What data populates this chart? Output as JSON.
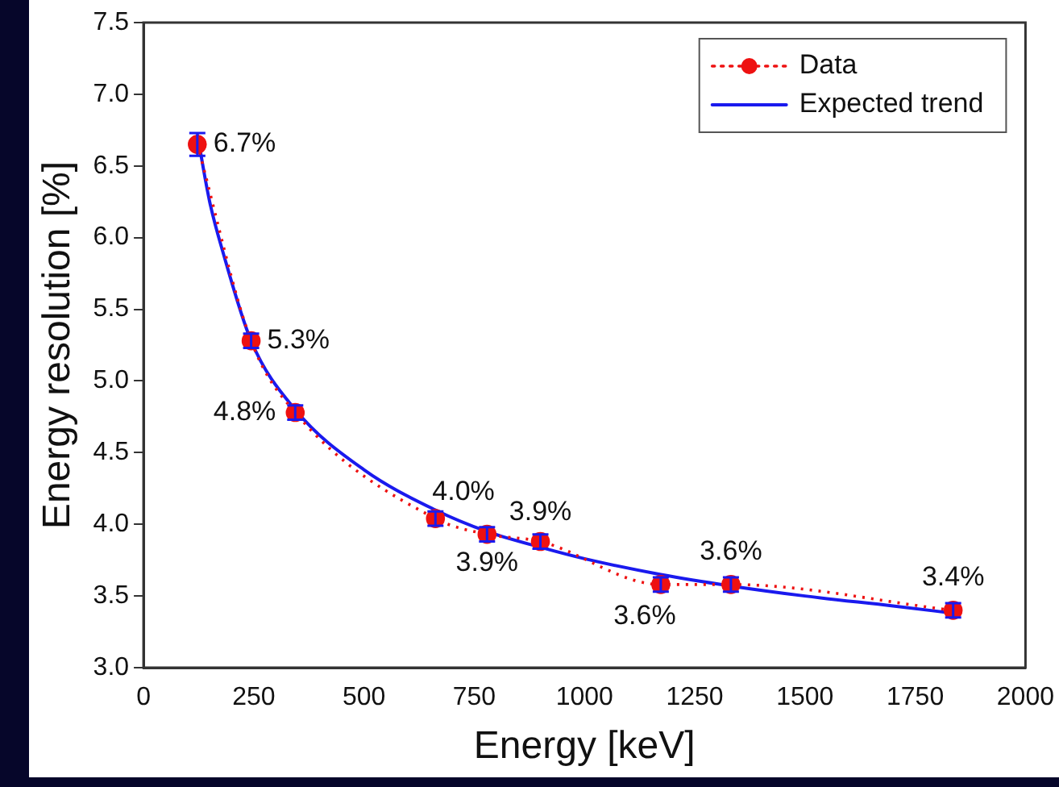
{
  "chart_data": {
    "type": "line",
    "xlabel": "Energy [keV]",
    "ylabel": "Energy resolution [%]",
    "xlim": [
      0,
      2000
    ],
    "xticks": [
      0,
      250,
      500,
      750,
      1000,
      1250,
      1500,
      1750,
      2000
    ],
    "ylim": [
      3.0,
      7.5
    ],
    "yticks": [
      {
        "value": 3.0,
        "label": "3.0"
      },
      {
        "value": 3.5,
        "label": "3.5"
      },
      {
        "value": 4.0,
        "label": "4.0"
      },
      {
        "value": 4.5,
        "label": "4.5"
      },
      {
        "value": 5.0,
        "label": "5.0"
      },
      {
        "value": 5.5,
        "label": "5.5"
      },
      {
        "value": 6.0,
        "label": "6.0"
      },
      {
        "value": 6.5,
        "label": "6.5"
      },
      {
        "value": 7.0,
        "label": "7.0"
      },
      {
        "value": 7.5,
        "label": "7.5"
      }
    ],
    "legend": "top right",
    "series": [
      {
        "name": "Data",
        "color": "#ee1111",
        "marker": "circle",
        "line_style": "dotted",
        "x": [
          122,
          244,
          344,
          662,
          779,
          900,
          1173,
          1332,
          1836
        ],
        "values": [
          6.65,
          5.28,
          4.78,
          4.04,
          3.93,
          3.88,
          3.58,
          3.58,
          3.4
        ],
        "errors": [
          0.08,
          0.05,
          0.05,
          0.05,
          0.05,
          0.05,
          0.05,
          0.05,
          0.05
        ],
        "value_labels": [
          "6.7%",
          "5.3%",
          "4.8%",
          "4.0%",
          "3.9%",
          "3.9%",
          "3.6%",
          "3.6%",
          "3.4%"
        ]
      },
      {
        "name": "Expected trend",
        "type": "line",
        "color": "#1a1aee",
        "marker": "none",
        "line_style": "solid",
        "x": [
          122,
          150,
          180,
          244,
          344,
          500,
          662,
          779,
          900,
          1000,
          1173,
          1332,
          1500,
          1700,
          1836
        ],
        "values": [
          6.72,
          6.25,
          5.9,
          5.28,
          4.8,
          4.38,
          4.1,
          3.95,
          3.84,
          3.76,
          3.65,
          3.57,
          3.5,
          3.43,
          3.38
        ]
      }
    ]
  }
}
